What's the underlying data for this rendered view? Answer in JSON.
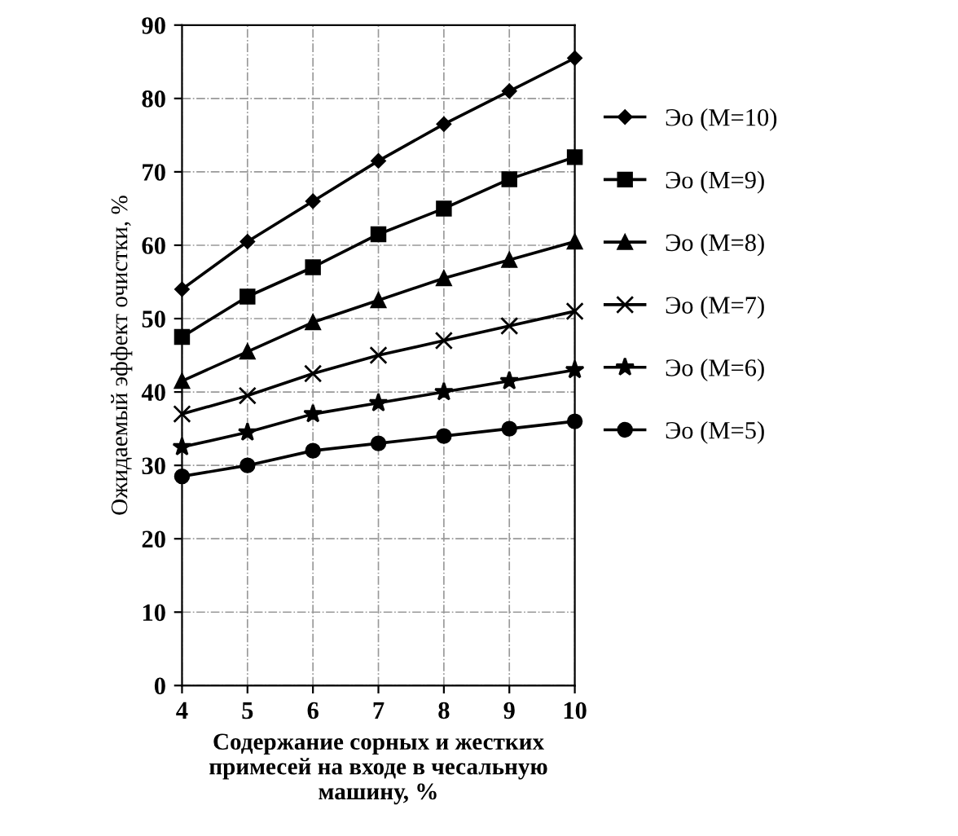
{
  "chart_data": {
    "type": "line",
    "xlabel": "Содержание сорных и жестких\nпримесей на входе в чесальную\nмашину, %",
    "ylabel": "Ожидаемый эффект очистки, %",
    "x": [
      4,
      5,
      6,
      7,
      8,
      9,
      10
    ],
    "series": [
      {
        "name": "Эо (M=10)",
        "color": "#000000",
        "marker": "diamond",
        "values": [
          54,
          60.5,
          66,
          71.5,
          76.5,
          81,
          85.5
        ]
      },
      {
        "name": "Эо (M=9)",
        "color": "#000000",
        "marker": "square",
        "values": [
          47.5,
          53,
          57,
          61.5,
          65,
          69,
          72
        ]
      },
      {
        "name": "Эо (M=8)",
        "color": "#000000",
        "marker": "triangle",
        "values": [
          41.5,
          45.5,
          49.5,
          52.5,
          55.5,
          58,
          60.5
        ]
      },
      {
        "name": "Эо (M=7)",
        "color": "#000000",
        "marker": "cross",
        "values": [
          37,
          39.5,
          42.5,
          45,
          47,
          49,
          51
        ]
      },
      {
        "name": "Эо (M=6)",
        "color": "#000000",
        "marker": "star",
        "values": [
          32.5,
          34.5,
          37,
          38.5,
          40,
          41.5,
          43
        ]
      },
      {
        "name": "Эо (M=5)",
        "color": "#000000",
        "marker": "circle",
        "values": [
          28.5,
          30,
          32,
          33,
          34,
          35,
          36
        ]
      }
    ],
    "xlim": [
      4,
      10
    ],
    "xticks": [
      4,
      5,
      6,
      7,
      8,
      9,
      10
    ],
    "ylim": [
      0,
      90
    ],
    "yticks": [
      0,
      10,
      20,
      30,
      40,
      50,
      60,
      70,
      80,
      90
    ],
    "grid": true,
    "legend": "right",
    "line_style": "solid"
  }
}
